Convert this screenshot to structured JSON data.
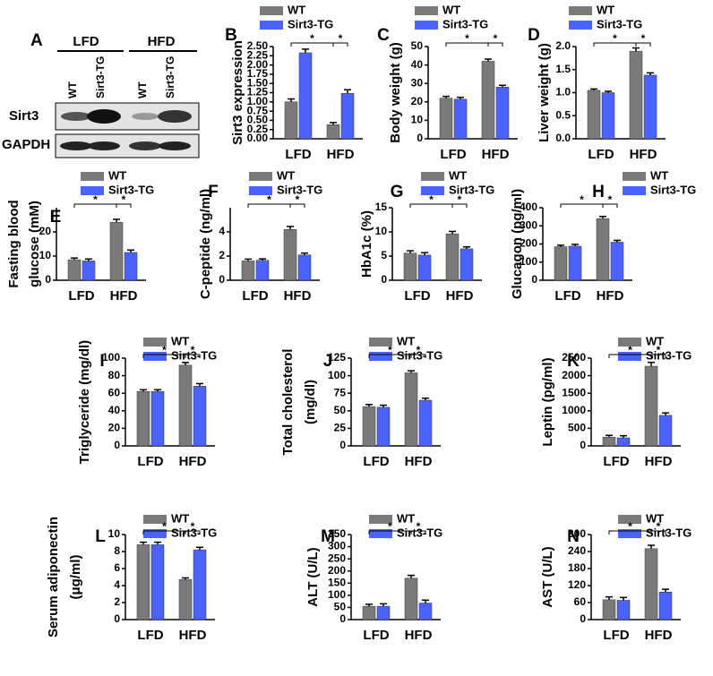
{
  "panel_a": {
    "letter": "A",
    "groups": [
      "LFD",
      "HFD"
    ],
    "lanes": [
      "WT",
      "Sirt3-TG",
      "WT",
      "Sirt3-TG"
    ],
    "rows": [
      "Sirt3",
      "GAPDH"
    ]
  },
  "chart_data": [
    {
      "type": "bar",
      "panel": "B",
      "ylabel": [
        "Sirt3 expression"
      ],
      "categories": [
        "LFD",
        "HFD"
      ],
      "series": [
        {
          "name": "WT",
          "color": "#7a7a7a",
          "values": [
            1.0,
            0.38
          ],
          "errors": [
            0.08,
            0.06
          ]
        },
        {
          "name": "Sirt3-TG",
          "color": "#4a62ff",
          "values": [
            2.33,
            1.23
          ],
          "errors": [
            0.1,
            0.1
          ]
        }
      ],
      "ylim": [
        0,
        2.5
      ],
      "yticks": [
        {
          "value": 0,
          "label": "0.00"
        },
        0.25,
        {
          "value": 0.5,
          "label": "0.50"
        },
        0.75,
        {
          "value": 1,
          "label": "1.00"
        },
        1.25,
        {
          "value": 1.5,
          "label": "1.50"
        },
        1.75,
        {
          "value": 2,
          "label": "2.00"
        },
        2.25,
        {
          "value": 2.5,
          "label": "2.50"
        }
      ],
      "annotations": [
        "*",
        "*"
      ]
    },
    {
      "type": "bar",
      "panel": "C",
      "ylabel": [
        "Body weight (g)"
      ],
      "categories": [
        "LFD",
        "HFD"
      ],
      "series": [
        {
          "name": "WT",
          "color": "#7a7a7a",
          "values": [
            22,
            42
          ],
          "errors": [
            1,
            1.2
          ]
        },
        {
          "name": "Sirt3-TG",
          "color": "#4a62ff",
          "values": [
            21.5,
            28
          ],
          "errors": [
            1,
            1
          ]
        }
      ],
      "ylim": [
        0,
        50
      ],
      "yticks": [
        0,
        10,
        20,
        30,
        40,
        50
      ],
      "annotations": [
        "*",
        "*"
      ]
    },
    {
      "type": "bar",
      "panel": "D",
      "ylabel": [
        "Liver weight (g)"
      ],
      "categories": [
        "LFD",
        "HFD"
      ],
      "series": [
        {
          "name": "WT",
          "color": "#7a7a7a",
          "values": [
            1.05,
            1.9
          ],
          "errors": [
            0.03,
            0.07
          ]
        },
        {
          "name": "Sirt3-TG",
          "color": "#4a62ff",
          "values": [
            1.0,
            1.38
          ],
          "errors": [
            0.03,
            0.05
          ]
        }
      ],
      "ylim": [
        0,
        2
      ],
      "yticks": [
        {
          "value": 0,
          "label": "0.0"
        },
        0.5,
        {
          "value": 1,
          "label": "1.0"
        },
        1.5,
        {
          "value": 2,
          "label": "2.0"
        }
      ],
      "annotations": [
        "*",
        "*"
      ]
    },
    {
      "type": "bar",
      "panel": "E",
      "ylabel": [
        "Fasting blood",
        "glucose (mM)"
      ],
      "categories": [
        "LFD",
        "HFD"
      ],
      "series": [
        {
          "name": "WT",
          "color": "#7a7a7a",
          "values": [
            8.5,
            24
          ],
          "errors": [
            0.7,
            1.2
          ]
        },
        {
          "name": "Sirt3-TG",
          "color": "#4a62ff",
          "values": [
            8,
            11.5
          ],
          "errors": [
            0.8,
            1
          ]
        }
      ],
      "ylim": [
        0,
        30
      ],
      "yticks": [
        0,
        10,
        20
      ],
      "annotations": [
        "*",
        "*"
      ]
    },
    {
      "type": "bar",
      "panel": "F",
      "ylabel": [
        "C-peptide (ng/ml)"
      ],
      "categories": [
        "LFD",
        "HFD"
      ],
      "series": [
        {
          "name": "WT",
          "color": "#7a7a7a",
          "values": [
            1.6,
            4.2
          ],
          "errors": [
            0.15,
            0.25
          ]
        },
        {
          "name": "Sirt3-TG",
          "color": "#4a62ff",
          "values": [
            1.65,
            2.1
          ],
          "errors": [
            0.12,
            0.15
          ]
        }
      ],
      "ylim": [
        0,
        6
      ],
      "yticks": [
        0,
        2,
        4
      ],
      "annotations": [
        "*",
        "*"
      ]
    },
    {
      "type": "bar",
      "panel": "G",
      "ylabel": [
        "HbA1c (%)"
      ],
      "categories": [
        "LFD",
        "HFD"
      ],
      "series": [
        {
          "name": "WT",
          "color": "#7a7a7a",
          "values": [
            5.6,
            9.6
          ],
          "errors": [
            0.5,
            0.5
          ]
        },
        {
          "name": "Sirt3-TG",
          "color": "#4a62ff",
          "values": [
            5.2,
            6.5
          ],
          "errors": [
            0.5,
            0.4
          ]
        }
      ],
      "ylim": [
        0,
        15
      ],
      "yticks": [
        0,
        5,
        10,
        15
      ],
      "annotations": [
        "*",
        "*"
      ]
    },
    {
      "type": "bar",
      "panel": "H",
      "ylabel": [
        "Glucagon (pg/ml)"
      ],
      "categories": [
        "LFD",
        "HFD"
      ],
      "series": [
        {
          "name": "WT",
          "color": "#7a7a7a",
          "values": [
            185,
            340
          ],
          "errors": [
            8,
            12
          ]
        },
        {
          "name": "Sirt3-TG",
          "color": "#4a62ff",
          "values": [
            188,
            210
          ],
          "errors": [
            10,
            10
          ]
        }
      ],
      "ylim": [
        0,
        400
      ],
      "yticks": [
        0,
        100,
        200,
        300,
        400
      ],
      "annotations": [
        "*",
        "*"
      ]
    },
    {
      "type": "bar",
      "panel": "I",
      "ylabel": [
        "Triglyceride (mg/dl)"
      ],
      "categories": [
        "LFD",
        "HFD"
      ],
      "series": [
        {
          "name": "WT",
          "color": "#7a7a7a",
          "values": [
            62,
            92
          ],
          "errors": [
            2,
            3
          ]
        },
        {
          "name": "Sirt3-TG",
          "color": "#4a62ff",
          "values": [
            62,
            68
          ],
          "errors": [
            2,
            3
          ]
        }
      ],
      "ylim": [
        0,
        100
      ],
      "yticks": [
        0,
        20,
        40,
        60,
        80,
        100
      ],
      "annotations": [
        "*",
        "*"
      ]
    },
    {
      "type": "bar",
      "panel": "J",
      "ylabel": [
        "Total cholesterol",
        "(mg/dl)"
      ],
      "categories": [
        "LFD",
        "HFD"
      ],
      "series": [
        {
          "name": "WT",
          "color": "#7a7a7a",
          "values": [
            56,
            104
          ],
          "errors": [
            3,
            3
          ]
        },
        {
          "name": "Sirt3-TG",
          "color": "#4a62ff",
          "values": [
            55,
            65
          ],
          "errors": [
            3,
            3
          ]
        }
      ],
      "ylim": [
        0,
        125
      ],
      "yticks": [
        0,
        25,
        50,
        75,
        100,
        125
      ],
      "annotations": [
        "*",
        "*"
      ]
    },
    {
      "type": "bar",
      "panel": "K",
      "ylabel": [
        "Leptin (pg/ml)"
      ],
      "categories": [
        "LFD",
        "HFD"
      ],
      "series": [
        {
          "name": "WT",
          "color": "#7a7a7a",
          "values": [
            250,
            2270
          ],
          "errors": [
            50,
            110
          ]
        },
        {
          "name": "Sirt3-TG",
          "color": "#4a62ff",
          "values": [
            230,
            870
          ],
          "errors": [
            60,
            70
          ]
        }
      ],
      "ylim": [
        0,
        2500
      ],
      "yticks": [
        0,
        500,
        1000,
        1500,
        2000,
        2500
      ],
      "annotations": [
        "*",
        "*"
      ]
    },
    {
      "type": "bar",
      "panel": "L",
      "ylabel": [
        "Serum adiponectin",
        "(μg/ml)"
      ],
      "categories": [
        "LFD",
        "HFD"
      ],
      "series": [
        {
          "name": "WT",
          "color": "#7a7a7a",
          "values": [
            8.8,
            4.7
          ],
          "errors": [
            0.3,
            0.2
          ]
        },
        {
          "name": "Sirt3-TG",
          "color": "#4a62ff",
          "values": [
            8.8,
            8.2
          ],
          "errors": [
            0.3,
            0.3
          ]
        }
      ],
      "ylim": [
        0,
        10
      ],
      "yticks": [
        0,
        2,
        4,
        6,
        8,
        10
      ],
      "annotations": [
        "*",
        "*"
      ]
    },
    {
      "type": "bar",
      "panel": "M",
      "ylabel": [
        "ALT (U/L)"
      ],
      "categories": [
        "LFD",
        "HFD"
      ],
      "series": [
        {
          "name": "WT",
          "color": "#7a7a7a",
          "values": [
            55,
            170
          ],
          "errors": [
            8,
            12
          ]
        },
        {
          "name": "Sirt3-TG",
          "color": "#4a62ff",
          "values": [
            55,
            68
          ],
          "errors": [
            10,
            12
          ]
        }
      ],
      "ylim": [
        0,
        350
      ],
      "yticks": [
        0,
        50,
        100,
        150,
        200,
        250,
        300,
        350
      ],
      "annotations": [
        "*",
        "*"
      ]
    },
    {
      "type": "bar",
      "panel": "N",
      "ylabel": [
        "AST (U/L)"
      ],
      "categories": [
        "LFD",
        "HFD"
      ],
      "series": [
        {
          "name": "WT",
          "color": "#7a7a7a",
          "values": [
            70,
            250
          ],
          "errors": [
            10,
            12
          ]
        },
        {
          "name": "Sirt3-TG",
          "color": "#4a62ff",
          "values": [
            68,
            97
          ],
          "errors": [
            10,
            10
          ]
        }
      ],
      "ylim": [
        0,
        300
      ],
      "yticks": [
        0,
        60,
        120,
        180,
        240,
        300
      ],
      "annotations": [
        "*",
        "*"
      ]
    }
  ]
}
